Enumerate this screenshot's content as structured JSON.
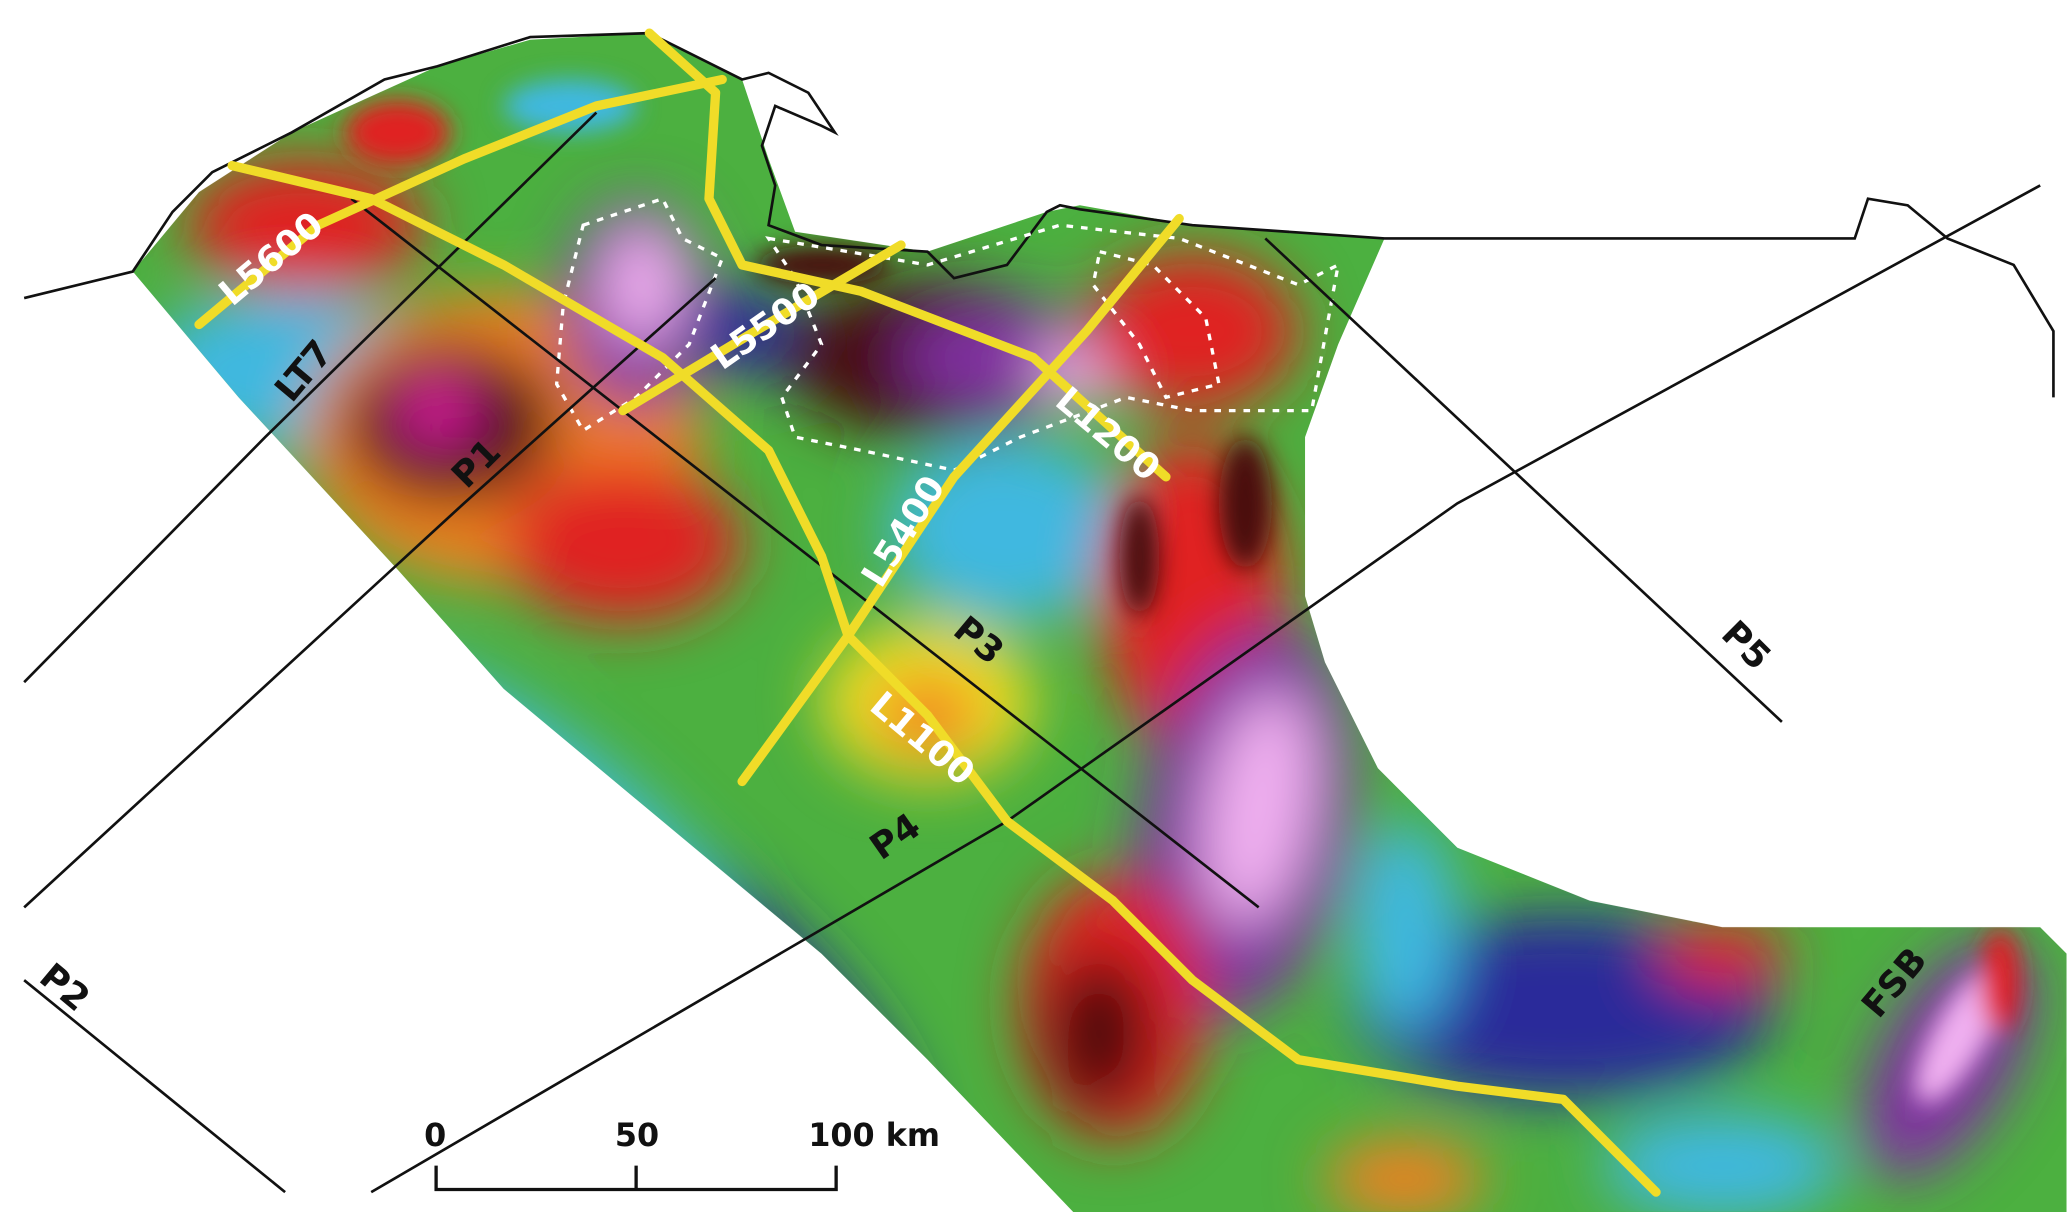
{
  "map": {
    "yellow_line_labels": [
      "L5600",
      "L5500",
      "L5400",
      "L1200",
      "L1100"
    ],
    "profile_labels": [
      "LT7",
      "P1",
      "P2",
      "P3",
      "P4",
      "P5"
    ],
    "basin_label": "FSB",
    "scale_bar": {
      "ticks": [
        "0",
        "50",
        "100 km"
      ]
    },
    "colors": {
      "survey_lines": "#f0dc28",
      "profiles": "#111111",
      "coastline": "#111111",
      "anomaly_outlines": "#ffffff",
      "colormap": [
        "#2a2a9a",
        "#3fb8e0",
        "#4cb040",
        "#f2e020",
        "#f08020",
        "#e02020",
        "#4a1010",
        "#c040c0",
        "#f0b0f0"
      ]
    }
  }
}
